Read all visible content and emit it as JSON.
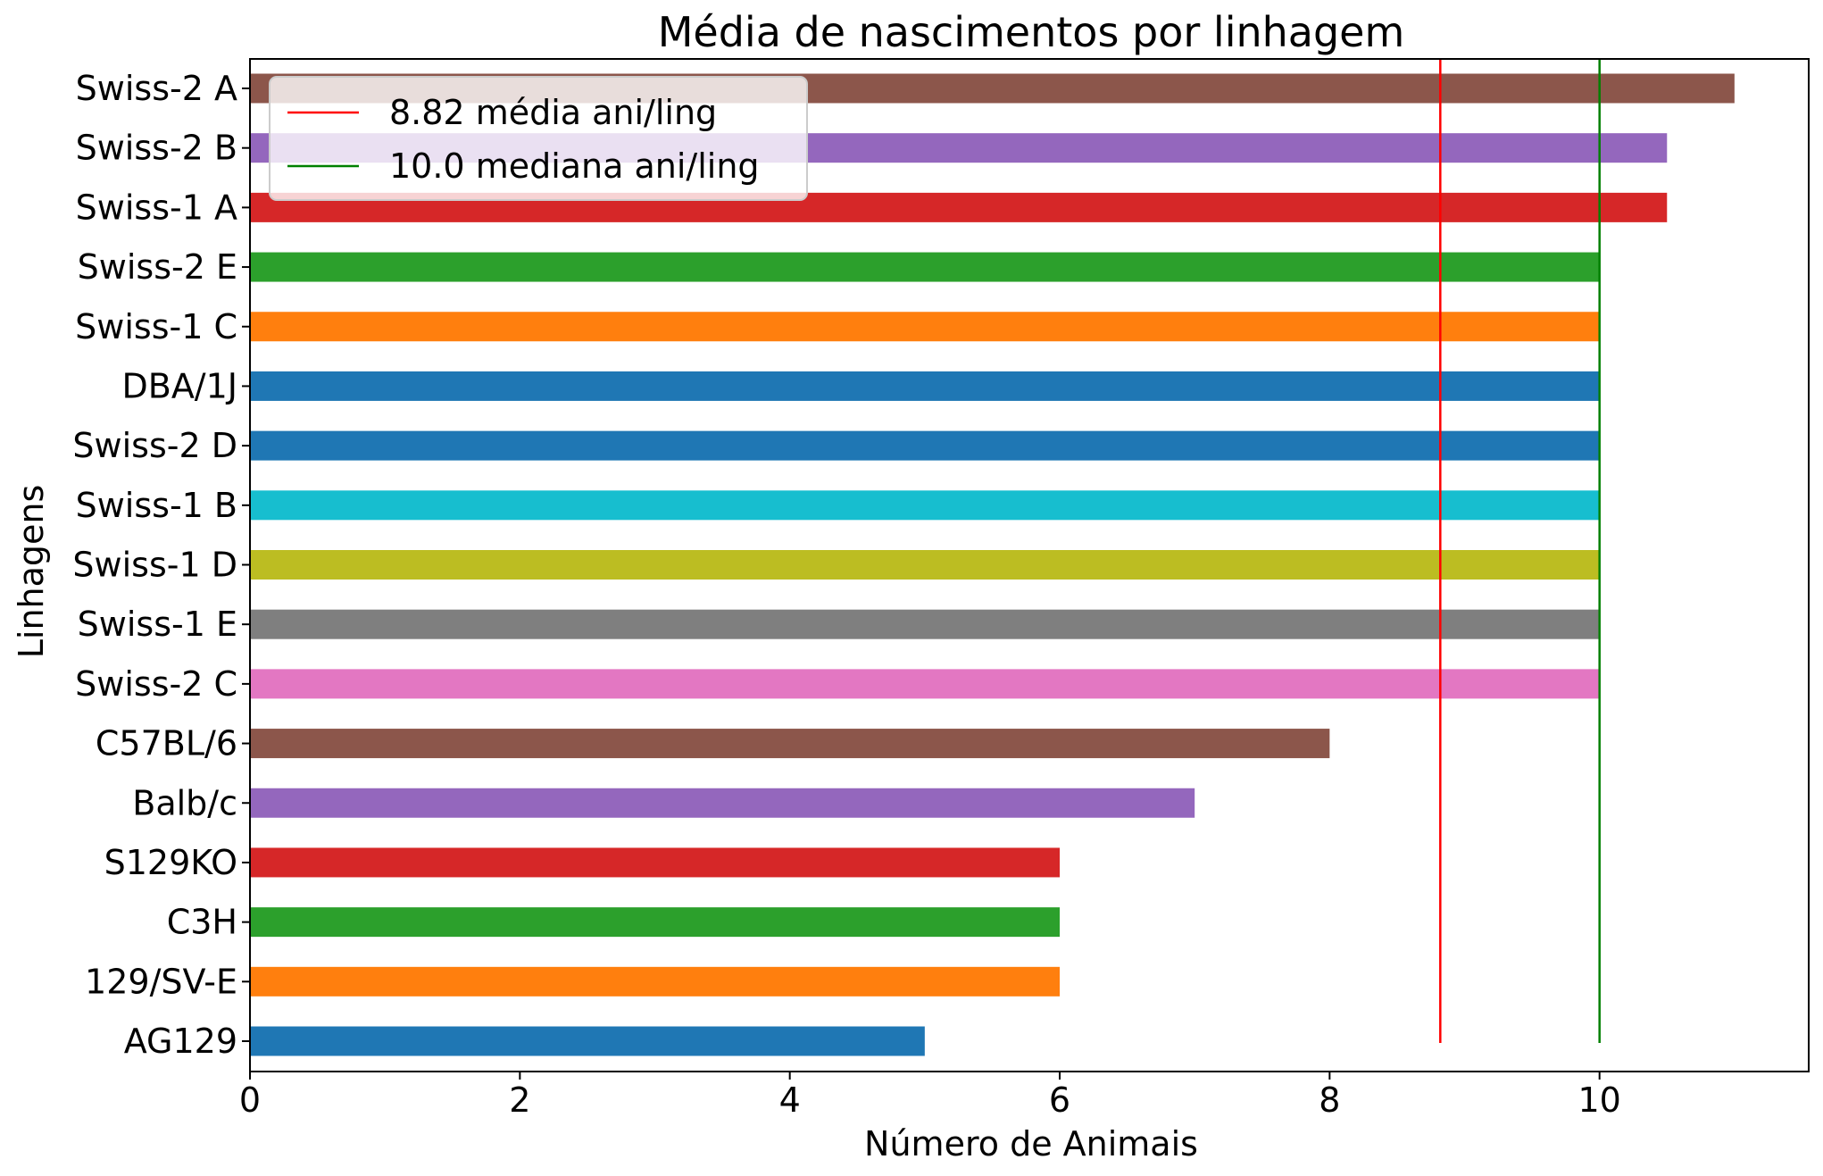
{
  "chart_data": {
    "type": "bar",
    "orientation": "horizontal",
    "title": "Média de nascimentos por linhagem",
    "xlabel": "Número de Animais",
    "ylabel": "Linhagens",
    "xlim": [
      0,
      11.55
    ],
    "xticks": [
      0,
      2,
      4,
      6,
      8,
      10
    ],
    "grid": false,
    "legend_position": "top-left",
    "categories": [
      "Swiss-2 A",
      "Swiss-2 B",
      "Swiss-1 A",
      "Swiss-2 E",
      "Swiss-1 C",
      "DBA/1J",
      "Swiss-2 D",
      "Swiss-1 B",
      "Swiss-1 D",
      "Swiss-1 E",
      "Swiss-2 C",
      "C57BL/6",
      "Balb/c",
      "S129KO",
      "C3H",
      "129/SV-E",
      "AG129"
    ],
    "values": [
      11,
      10.5,
      10.5,
      10,
      10,
      10,
      10,
      10,
      10,
      10,
      10,
      8,
      7,
      6,
      6,
      6,
      5
    ],
    "colors": [
      "#8c564b",
      "#9467bd",
      "#d62728",
      "#2ca02c",
      "#ff7f0e",
      "#1f77b4",
      "#1f77b4",
      "#17becf",
      "#bcbd22",
      "#7f7f7f",
      "#e377c2",
      "#8c564b",
      "#9467bd",
      "#d62728",
      "#2ca02c",
      "#ff7f0e",
      "#1f77b4"
    ],
    "reference_lines": [
      {
        "label": "8.82 média ani/ling",
        "value": 8.82,
        "color": "#ff0000"
      },
      {
        "label": "10.0 mediana ani/ling",
        "value": 10.0,
        "color": "#008000"
      }
    ]
  }
}
